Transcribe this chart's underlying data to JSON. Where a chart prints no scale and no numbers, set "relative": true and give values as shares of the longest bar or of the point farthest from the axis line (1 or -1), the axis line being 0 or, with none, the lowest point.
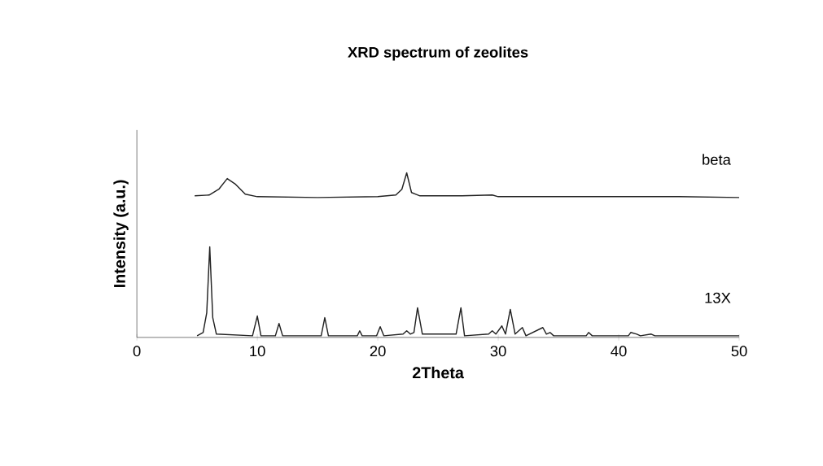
{
  "chart_data": {
    "type": "line",
    "title": "XRD spectrum of zeolites",
    "xlabel": "2Theta",
    "ylabel": "Intensity (a.u.)",
    "relative": true,
    "xlim": [
      0,
      50
    ],
    "xticks": [
      0,
      10,
      20,
      30,
      40,
      50
    ],
    "grid": false,
    "marker": "none",
    "line_style": "solid",
    "series": [
      {
        "name": "beta",
        "color": "#222222",
        "x": [
          4.8,
          6,
          6.8,
          7.5,
          8.2,
          9,
          10,
          15,
          20,
          21.5,
          22,
          22.4,
          22.8,
          23.5,
          25,
          27,
          29.5,
          30,
          35,
          40,
          45,
          50
        ],
        "values": [
          0.86,
          0.865,
          0.9,
          0.965,
          0.93,
          0.87,
          0.855,
          0.85,
          0.855,
          0.865,
          0.9,
          1.0,
          0.88,
          0.86,
          0.86,
          0.86,
          0.865,
          0.855,
          0.855,
          0.855,
          0.855,
          0.85
        ]
      },
      {
        "name": "13X",
        "color": "#222222",
        "x": [
          5,
          5.5,
          5.8,
          6.05,
          6.3,
          6.6,
          9.6,
          10,
          10.3,
          11.5,
          11.8,
          12.1,
          15.3,
          15.6,
          15.9,
          18.3,
          18.5,
          18.7,
          19.9,
          20.2,
          20.5,
          22.1,
          22.4,
          22.7,
          23.0,
          23.3,
          23.7,
          26.5,
          26.9,
          27.2,
          29.2,
          29.5,
          29.8,
          30.3,
          30.6,
          31.0,
          31.4,
          32.0,
          32.3,
          33.7,
          34.0,
          34.3,
          34.6,
          37.3,
          37.5,
          37.8,
          40.8,
          41,
          41.5,
          41.8,
          42.7,
          43,
          50
        ],
        "values": [
          0.01,
          0.03,
          0.15,
          0.55,
          0.12,
          0.02,
          0.01,
          0.13,
          0.01,
          0.01,
          0.085,
          0.01,
          0.01,
          0.12,
          0.01,
          0.01,
          0.04,
          0.01,
          0.01,
          0.065,
          0.01,
          0.02,
          0.04,
          0.02,
          0.03,
          0.18,
          0.02,
          0.02,
          0.18,
          0.01,
          0.02,
          0.04,
          0.02,
          0.07,
          0.02,
          0.17,
          0.02,
          0.06,
          0.01,
          0.06,
          0.02,
          0.03,
          0.01,
          0.01,
          0.03,
          0.01,
          0.01,
          0.03,
          0.02,
          0.01,
          0.02,
          0.01,
          0.01
        ]
      }
    ]
  }
}
